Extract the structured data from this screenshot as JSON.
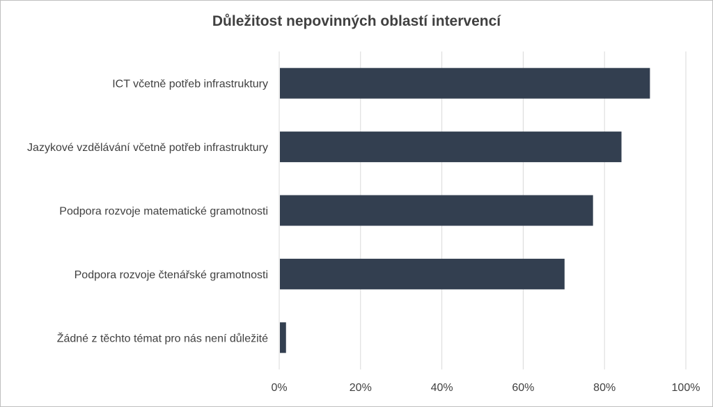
{
  "chart_data": {
    "type": "bar",
    "orientation": "horizontal",
    "title": "Důležitost nepovinných oblastí intervencí",
    "xlabel": "",
    "ylabel": "",
    "categories": [
      "ICT včetně potřeb infrastruktury",
      "Jazykové vzdělávání včetně potřeb infrastruktury",
      "Podpora rozvoje matematické gramotnosti",
      "Podpora rozvoje čtenářské gramotnosti",
      "Žádné z těchto témat pro nás není důležité"
    ],
    "values": [
      0.91,
      0.84,
      0.77,
      0.7,
      0.015
    ],
    "xlim": [
      0,
      1
    ],
    "x_ticks": [
      0,
      0.2,
      0.4,
      0.6,
      0.8,
      1.0
    ],
    "x_tick_labels": [
      "0%",
      "20%",
      "40%",
      "60%",
      "80%",
      "100%"
    ],
    "grid": "vertical",
    "legend": "none",
    "bar_color": "#333f50",
    "grid_color": "#d9d9d9"
  }
}
